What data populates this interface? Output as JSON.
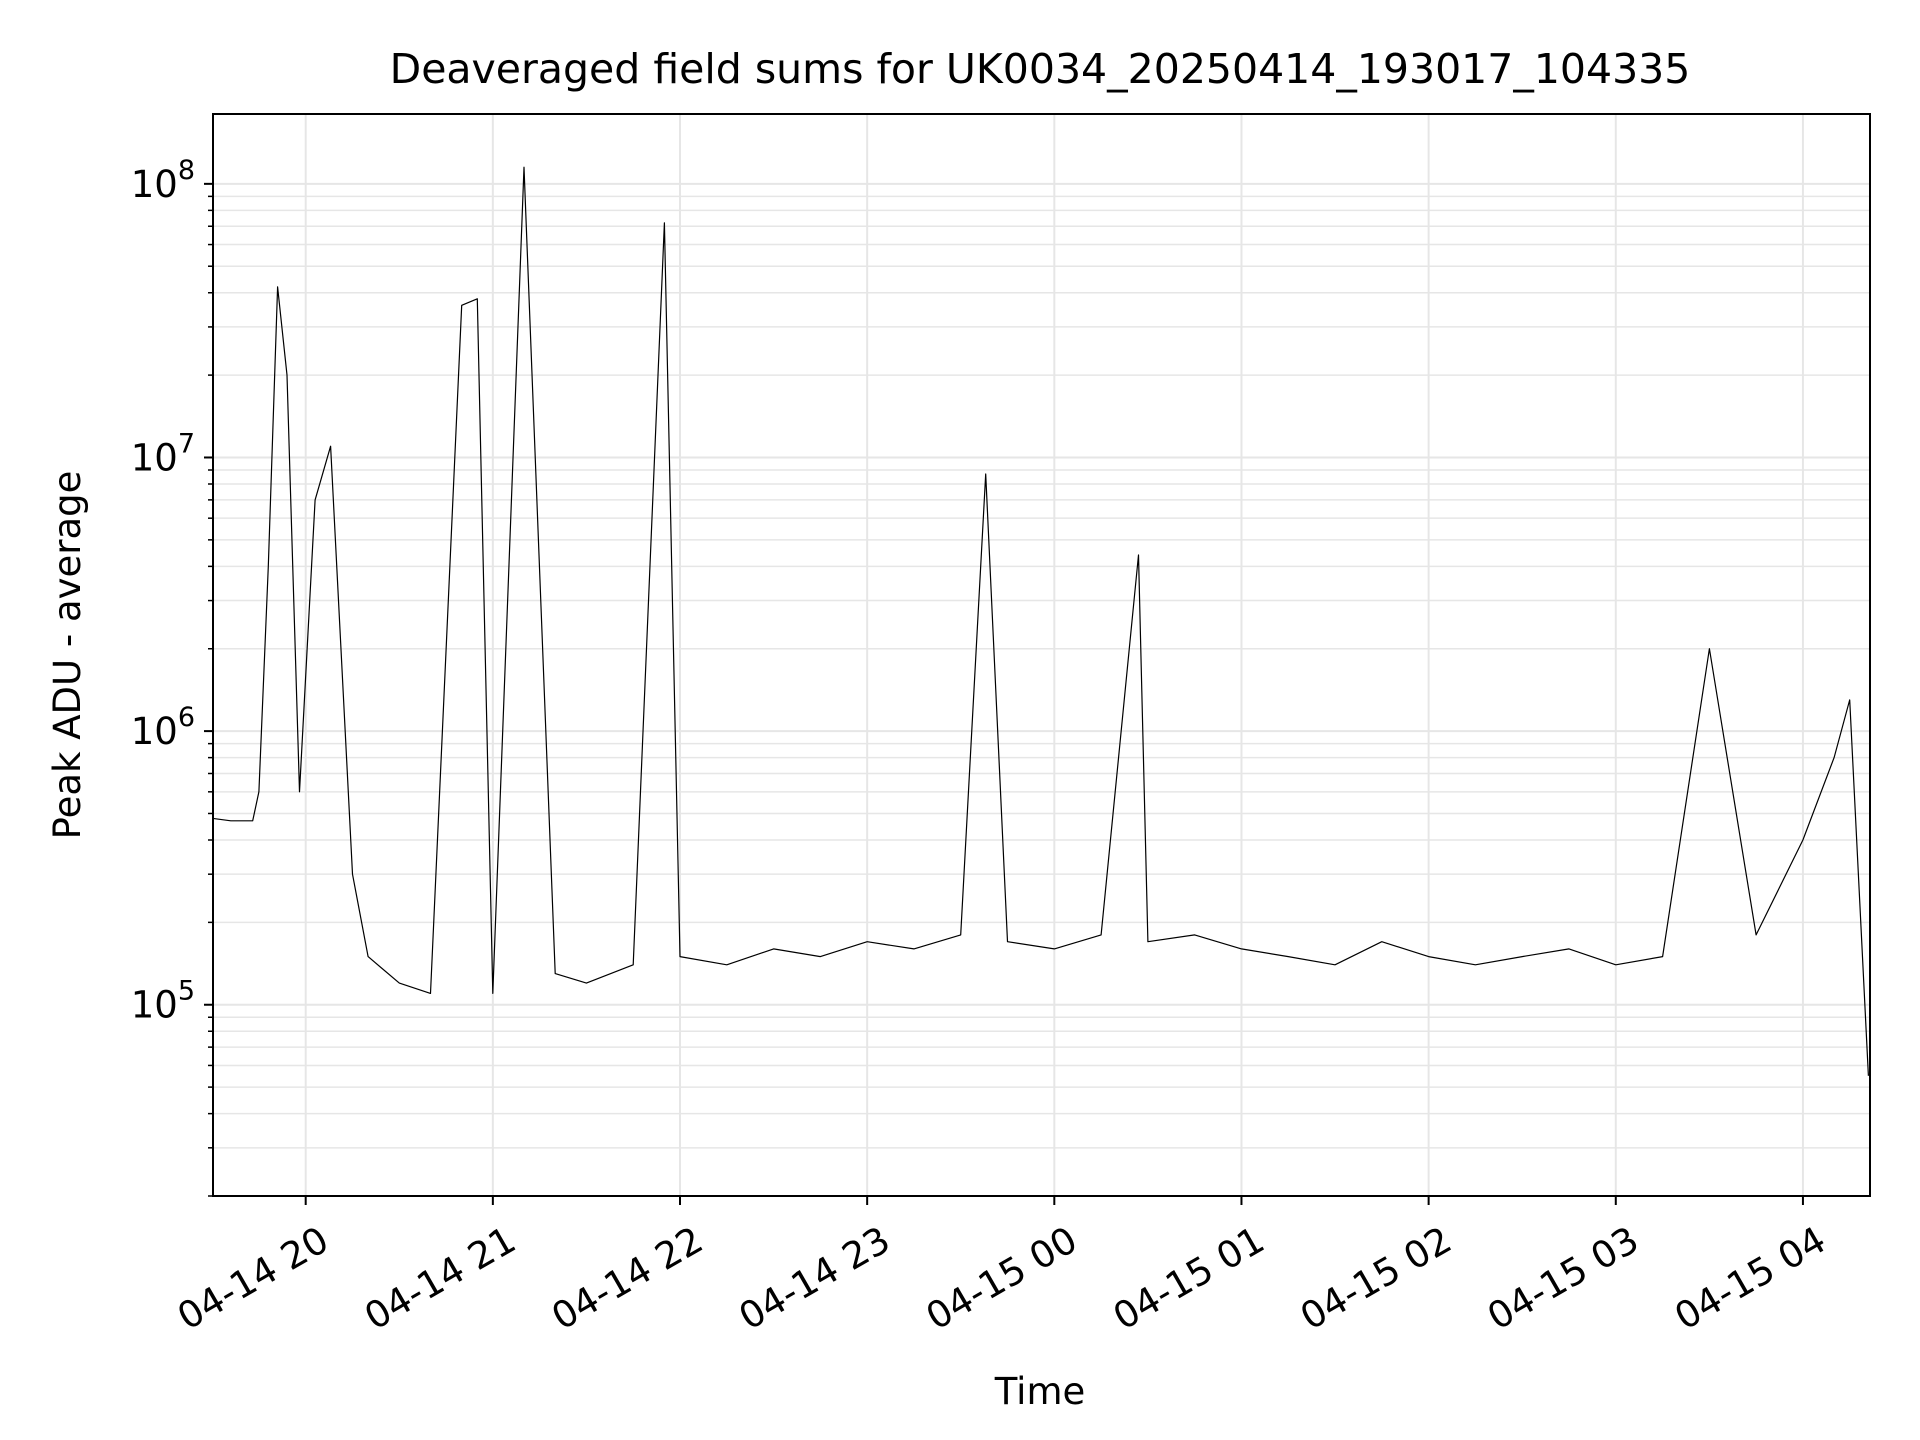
{
  "chart_data": {
    "type": "line",
    "title": "Deaveraged field sums for UK0034_20250414_193017_104335",
    "xlabel": "Time",
    "ylabel": "Peak ADU - average",
    "x_scale": "time",
    "y_scale": "log",
    "xlim": [
      "2025-04-14 19:30:17",
      "2025-04-15 04:21:30"
    ],
    "ylim": [
      20000,
      180000000
    ],
    "grid": true,
    "x_ticks": [
      {
        "value": "2025-04-14 20:00",
        "label": "04-14 20"
      },
      {
        "value": "2025-04-14 21:00",
        "label": "04-14 21"
      },
      {
        "value": "2025-04-14 22:00",
        "label": "04-14 22"
      },
      {
        "value": "2025-04-14 23:00",
        "label": "04-14 23"
      },
      {
        "value": "2025-04-15 00:00",
        "label": "04-15 00"
      },
      {
        "value": "2025-04-15 01:00",
        "label": "04-15 01"
      },
      {
        "value": "2025-04-15 02:00",
        "label": "04-15 02"
      },
      {
        "value": "2025-04-15 03:00",
        "label": "04-15 03"
      },
      {
        "value": "2025-04-15 04:00",
        "label": "04-15 04"
      }
    ],
    "y_ticks": [
      {
        "value": 100000,
        "base": "10",
        "exp": "5"
      },
      {
        "value": 1000000,
        "base": "10",
        "exp": "6"
      },
      {
        "value": 10000000,
        "base": "10",
        "exp": "7"
      },
      {
        "value": 100000000,
        "base": "10",
        "exp": "8"
      }
    ],
    "series": [
      {
        "color": "#000000",
        "x": [
          "2025-04-14 19:30",
          "2025-04-14 19:36",
          "2025-04-14 19:43",
          "2025-04-14 19:45",
          "2025-04-14 19:48",
          "2025-04-14 19:51",
          "2025-04-14 19:54",
          "2025-04-14 19:58",
          "2025-04-14 20:03",
          "2025-04-14 20:08",
          "2025-04-14 20:15",
          "2025-04-14 20:20",
          "2025-04-14 20:30",
          "2025-04-14 20:40",
          "2025-04-14 20:50",
          "2025-04-14 20:55",
          "2025-04-14 21:00",
          "2025-04-14 21:10",
          "2025-04-14 21:20",
          "2025-04-14 21:30",
          "2025-04-14 21:45",
          "2025-04-14 21:55",
          "2025-04-14 22:00",
          "2025-04-14 22:15",
          "2025-04-14 22:30",
          "2025-04-14 22:45",
          "2025-04-14 23:00",
          "2025-04-14 23:15",
          "2025-04-14 23:30",
          "2025-04-14 23:38",
          "2025-04-14 23:45",
          "2025-04-15 00:00",
          "2025-04-15 00:15",
          "2025-04-15 00:27",
          "2025-04-15 00:30",
          "2025-04-15 00:45",
          "2025-04-15 01:00",
          "2025-04-15 01:15",
          "2025-04-15 01:30",
          "2025-04-15 01:45",
          "2025-04-15 02:00",
          "2025-04-15 02:15",
          "2025-04-15 02:30",
          "2025-04-15 02:45",
          "2025-04-15 03:00",
          "2025-04-15 03:15",
          "2025-04-15 03:30",
          "2025-04-15 03:45",
          "2025-04-15 04:00",
          "2025-04-15 04:10",
          "2025-04-15 04:15",
          "2025-04-15 04:21"
        ],
        "y": [
          480000,
          470000,
          470000,
          600000,
          4000000,
          42000000,
          20000000,
          600000,
          7000000,
          11000000,
          300000,
          150000,
          120000,
          110000,
          36000000,
          38000000,
          110000,
          115000000,
          130000,
          120000,
          140000,
          72000000,
          150000,
          140000,
          160000,
          150000,
          170000,
          160000,
          180000,
          8700000,
          170000,
          160000,
          180000,
          4400000,
          170000,
          180000,
          160000,
          150000,
          140000,
          170000,
          150000,
          140000,
          150000,
          160000,
          140000,
          150000,
          2000000,
          180000,
          400000,
          800000,
          1300000,
          55000
        ]
      }
    ]
  }
}
